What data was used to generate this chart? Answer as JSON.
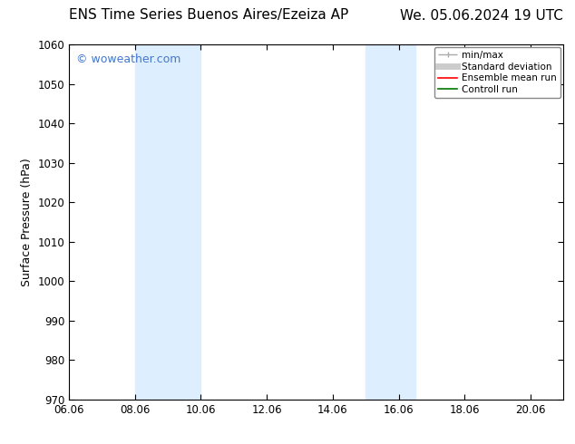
{
  "title_left": "ENS Time Series Buenos Aires/Ezeiza AP",
  "title_right": "We. 05.06.2024 19 UTC",
  "ylabel": "Surface Pressure (hPa)",
  "ylim": [
    970,
    1060
  ],
  "yticks": [
    970,
    980,
    990,
    1000,
    1010,
    1020,
    1030,
    1040,
    1050,
    1060
  ],
  "xlim_start": 6.06,
  "xlim_end": 21.06,
  "xticks": [
    6.06,
    8.06,
    10.06,
    12.06,
    14.06,
    16.06,
    18.06,
    20.06
  ],
  "xtick_labels": [
    "06.06",
    "08.06",
    "10.06",
    "12.06",
    "14.06",
    "16.06",
    "18.06",
    "20.06"
  ],
  "shaded_bands": [
    {
      "x_start": 8.06,
      "x_end": 10.06
    },
    {
      "x_start": 15.06,
      "x_end": 16.56
    }
  ],
  "shaded_color": "#ddeeff",
  "bg_color": "#ffffff",
  "watermark": "© woweather.com",
  "watermark_color": "#4477cc",
  "legend_items": [
    {
      "label": "min/max",
      "color": "#aaaaaa",
      "lw": 1.0
    },
    {
      "label": "Standard deviation",
      "color": "#cccccc",
      "lw": 5
    },
    {
      "label": "Ensemble mean run",
      "color": "#ff0000",
      "lw": 1.2
    },
    {
      "label": "Controll run",
      "color": "#007700",
      "lw": 1.2
    }
  ],
  "title_fontsize": 11,
  "axis_label_fontsize": 9,
  "tick_fontsize": 8.5,
  "legend_fontsize": 7.5,
  "watermark_fontsize": 9
}
